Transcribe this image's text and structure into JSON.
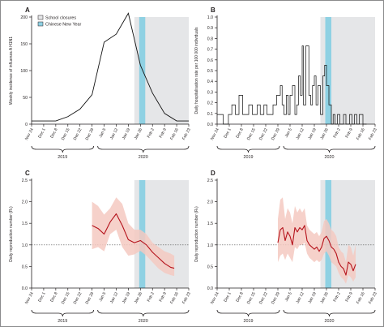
{
  "colors": {
    "school_closure_fill": "#e5e6e8",
    "school_closure_stroke": "#bcbec0",
    "cny_fill": "#8fd1e3",
    "line_black": "#111111",
    "rt_line": "#b5121b",
    "rt_band": "#f4c9c1",
    "frame": "#231f20",
    "reference_line": "#555555"
  },
  "year_labels": [
    "2019",
    "2020"
  ],
  "chart_data": [
    {
      "panel": "A",
      "type": "line",
      "ylabel": "Weekly incidence of influenza A H1N1",
      "ylim": [
        0,
        200
      ],
      "yticks": [
        0,
        50,
        100,
        150,
        200
      ],
      "x_tick_labels": [
        "Nov 24",
        "Dec 1",
        "Dec 8",
        "Dec 15",
        "Dec 22",
        "Dec 29",
        "Jan 5",
        "Jan 12",
        "Jan 19",
        "Jan 26",
        "Feb 2",
        "Feb 9",
        "Feb 16",
        "Feb 23"
      ],
      "school_closures": [
        8.5,
        13
      ],
      "chinese_new_year": [
        8.9,
        9.4
      ],
      "legend": [
        "School closures",
        "Chinese New Year"
      ],
      "legend_position": "top-left",
      "series": [
        {
          "x": [
            0,
            2,
            3,
            4,
            5,
            6,
            7,
            8,
            9,
            10,
            11,
            12,
            13
          ],
          "y": [
            6,
            6,
            14,
            28,
            55,
            153,
            168,
            207,
            110,
            58,
            20,
            6,
            6
          ]
        }
      ]
    },
    {
      "panel": "B",
      "type": "line",
      "ylabel": "Daily hospitalisation rate per 100 000 individuals",
      "ylim": [
        0,
        1.0
      ],
      "yticks": [
        0,
        0.1,
        0.2,
        0.3,
        0.4,
        0.5,
        0.6,
        0.7,
        0.8,
        0.9,
        1.0
      ],
      "x_tick_labels": [
        "Nov 24",
        "Dec 1",
        "Dec 8",
        "Dec 15",
        "Dec 22",
        "Dec 29",
        "Jan 5",
        "Jan 12",
        "Jan 19",
        "Jan 26",
        "Feb 2",
        "Feb 9",
        "Feb 16",
        "Feb 23"
      ],
      "school_closures": [
        8.5,
        13
      ],
      "chinese_new_year": [
        8.9,
        9.4
      ],
      "series": [
        {
          "x": [
            0,
            0.5,
            0.93,
            1.21,
            1.5,
            1.8,
            2.1,
            2.6,
            2.9,
            3.3,
            3.55,
            3.85,
            4.1,
            4.6,
            4.9,
            5.2,
            5.35,
            5.5,
            5.7,
            5.85,
            6.0,
            6.2,
            6.4,
            6.55,
            6.7,
            6.85,
            7.0,
            7.1,
            7.3,
            7.55,
            7.7,
            7.85,
            8.0,
            8.14,
            8.3,
            8.5,
            8.7,
            8.85,
            9.0,
            9.2,
            9.4,
            9.55,
            9.7,
            9.9,
            10.1,
            10.4,
            10.6,
            10.9,
            11.1,
            11.3,
            11.5,
            11.7,
            12.0,
            12.3
          ],
          "y": [
            0.09,
            0,
            0.09,
            0.18,
            0.09,
            0.27,
            0.09,
            0.18,
            0.09,
            0.18,
            0.09,
            0.18,
            0.09,
            0.18,
            0.27,
            0.36,
            0.18,
            0.09,
            0.27,
            0.09,
            0.27,
            0.36,
            0.09,
            0.18,
            0.45,
            0.27,
            0.73,
            0.18,
            0.73,
            0.27,
            0.18,
            0.36,
            0.45,
            0.18,
            0.36,
            0.09,
            0.45,
            0.55,
            0.36,
            0.18,
            0,
            0.09,
            0,
            0.09,
            0,
            0.09,
            0,
            0.09,
            0,
            0.09,
            0,
            0.09,
            0,
            0
          ]
        }
      ]
    },
    {
      "panel": "C",
      "type": "line",
      "ylabel": "Daily reproduction number (Rₜ)",
      "ylim": [
        0,
        2.5
      ],
      "yticks": [
        0,
        0.5,
        1.0,
        1.5,
        2.0,
        2.5
      ],
      "x_tick_labels": [
        "Nov 24",
        "Dec 1",
        "Dec 8",
        "Dec 15",
        "Dec 22",
        "Dec 29",
        "Jan 5",
        "Jan 12",
        "Jan 19",
        "Jan 26",
        "Feb 2",
        "Feb 9",
        "Feb 16",
        "Feb 23"
      ],
      "school_closures": [
        8.5,
        13
      ],
      "chinese_new_year": [
        8.9,
        9.4
      ],
      "reference_line": 1.0,
      "series": [
        {
          "x": [
            5.0,
            5.5,
            6.0,
            6.5,
            7.0,
            7.5,
            8.0,
            8.5,
            9.0,
            9.5,
            10.0,
            10.5,
            11.0,
            11.5,
            11.8
          ],
          "y": [
            1.45,
            1.38,
            1.25,
            1.53,
            1.72,
            1.45,
            1.12,
            1.05,
            1.1,
            1.0,
            0.83,
            0.7,
            0.57,
            0.48,
            0.46
          ],
          "lower": [
            0.9,
            0.95,
            0.85,
            1.25,
            1.35,
            0.95,
            0.75,
            0.78,
            0.86,
            0.75,
            0.6,
            0.45,
            0.35,
            0.3,
            0.28
          ],
          "upper": [
            2.0,
            1.9,
            1.7,
            1.85,
            2.1,
            1.95,
            1.5,
            1.35,
            1.35,
            1.25,
            1.05,
            0.95,
            0.85,
            0.8,
            0.75
          ]
        }
      ]
    },
    {
      "panel": "D",
      "type": "line",
      "ylabel": "Daily reproduction number (Rₜ)",
      "ylim": [
        0,
        2.5
      ],
      "yticks": [
        0,
        0.5,
        1.0,
        1.5,
        2.0,
        2.5
      ],
      "x_tick_labels": [
        "Nov 24",
        "Dec 1",
        "Dec 8",
        "Dec 15",
        "Dec 22",
        "Dec 29",
        "Jan 5",
        "Jan 12",
        "Jan 19",
        "Jan 26",
        "Feb 2",
        "Feb 9",
        "Feb 16",
        "Feb 23"
      ],
      "school_closures": [
        8.5,
        13
      ],
      "chinese_new_year": [
        8.9,
        9.4
      ],
      "reference_line": 1.0,
      "series": [
        {
          "x": [
            5.0,
            5.2,
            5.4,
            5.6,
            5.8,
            6.0,
            6.2,
            6.4,
            6.6,
            6.8,
            7.0,
            7.2,
            7.4,
            7.6,
            7.8,
            8.0,
            8.2,
            8.4,
            8.6,
            8.8,
            9.0,
            9.2,
            9.4,
            9.6,
            9.8,
            10.0,
            10.2,
            10.4,
            10.6,
            10.8,
            11.0,
            11.2,
            11.4
          ],
          "y": [
            1.05,
            1.35,
            1.4,
            1.1,
            1.3,
            1.2,
            1.0,
            1.4,
            1.3,
            1.4,
            1.35,
            1.45,
            1.1,
            1.0,
            0.95,
            0.9,
            0.95,
            0.85,
            0.95,
            1.15,
            1.2,
            1.1,
            0.95,
            0.9,
            0.8,
            0.6,
            0.5,
            0.45,
            0.3,
            0.6,
            0.55,
            0.4,
            0.55
          ],
          "lower": [
            0.6,
            0.75,
            0.8,
            0.65,
            0.8,
            0.7,
            0.6,
            0.95,
            0.9,
            1.0,
            1.0,
            1.05,
            0.8,
            0.7,
            0.65,
            0.6,
            0.65,
            0.6,
            0.65,
            0.8,
            0.85,
            0.75,
            0.6,
            0.55,
            0.5,
            0.35,
            0.25,
            0.2,
            0.1,
            0.3,
            0.25,
            0.15,
            0.25
          ],
          "upper": [
            1.6,
            2.05,
            2.1,
            1.6,
            1.85,
            1.75,
            1.5,
            1.9,
            1.75,
            1.85,
            1.75,
            1.85,
            1.45,
            1.35,
            1.3,
            1.25,
            1.3,
            1.2,
            1.3,
            1.55,
            1.6,
            1.5,
            1.35,
            1.3,
            1.2,
            0.95,
            0.85,
            0.8,
            0.6,
            1.0,
            0.95,
            0.75,
            1.0
          ]
        }
      ]
    }
  ]
}
